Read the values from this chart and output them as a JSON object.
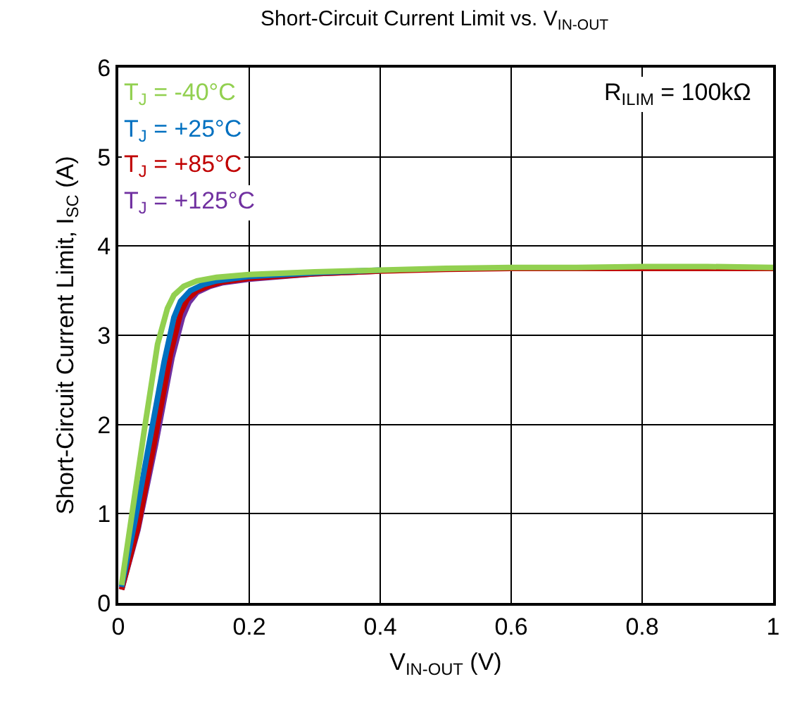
{
  "chart_data": {
    "type": "line",
    "title": "Short-Circuit Current Limit vs. V$_{IN-OUT}$",
    "xlabel": "V$_{IN-OUT}$ (V)",
    "ylabel": "Short-Circuit Current Limit, I$_{SC}$ (A)",
    "annotations": [
      "R$_{ILIM}$ = 100kΩ"
    ],
    "xlim": [
      0,
      1
    ],
    "xticks": [
      0,
      0.2,
      0.4,
      0.6,
      0.8,
      1
    ],
    "ylim": [
      0,
      6
    ],
    "yticks": [
      0,
      1,
      2,
      3,
      4,
      5,
      6
    ],
    "grid": true,
    "legend": "top left",
    "marker": "none",
    "line_style": "solid",
    "series": [
      {
        "name": "T$_{J}$ = -40°C",
        "color": "#92d050",
        "x": [
          0.005,
          0.02,
          0.04,
          0.06,
          0.075,
          0.085,
          0.1,
          0.12,
          0.15,
          0.2,
          0.3,
          0.4,
          0.5,
          0.6,
          0.7,
          0.8,
          0.9,
          1
        ],
        "values": [
          0.2,
          0.95,
          1.95,
          2.9,
          3.3,
          3.45,
          3.55,
          3.61,
          3.65,
          3.68,
          3.71,
          3.73,
          3.75,
          3.76,
          3.76,
          3.77,
          3.77,
          3.76
        ]
      },
      {
        "name": "T$_{J}$ = +25°C",
        "color": "#0070c0",
        "x": [
          0.005,
          0.025,
          0.05,
          0.07,
          0.085,
          0.095,
          0.11,
          0.13,
          0.15,
          0.2,
          0.3,
          0.4
        ],
        "values": [
          0.18,
          0.9,
          1.9,
          2.7,
          3.2,
          3.38,
          3.5,
          3.57,
          3.61,
          3.66,
          3.7,
          3.73
        ]
      },
      {
        "name": "T$_{J}$ = +85°C",
        "color": "#c00000",
        "x": [
          0.005,
          0.03,
          0.055,
          0.08,
          0.095,
          0.105,
          0.12,
          0.14,
          0.16,
          0.2,
          0.3,
          0.4,
          0.5,
          0.6,
          0.7,
          0.8,
          0.9,
          1
        ],
        "values": [
          0.15,
          0.85,
          1.8,
          2.8,
          3.25,
          3.4,
          3.5,
          3.56,
          3.6,
          3.64,
          3.69,
          3.72,
          3.74,
          3.75,
          3.75,
          3.75,
          3.75,
          3.75
        ]
      },
      {
        "name": "T$_{J}$ = +125°C",
        "color": "#7030a0",
        "x": [
          0.005,
          0.03,
          0.057,
          0.082,
          0.098,
          0.108,
          0.12,
          0.14,
          0.16,
          0.2,
          0.3,
          0.4
        ],
        "values": [
          0.15,
          0.82,
          1.78,
          2.75,
          3.2,
          3.37,
          3.48,
          3.55,
          3.59,
          3.63,
          3.69,
          3.72
        ]
      }
    ]
  }
}
